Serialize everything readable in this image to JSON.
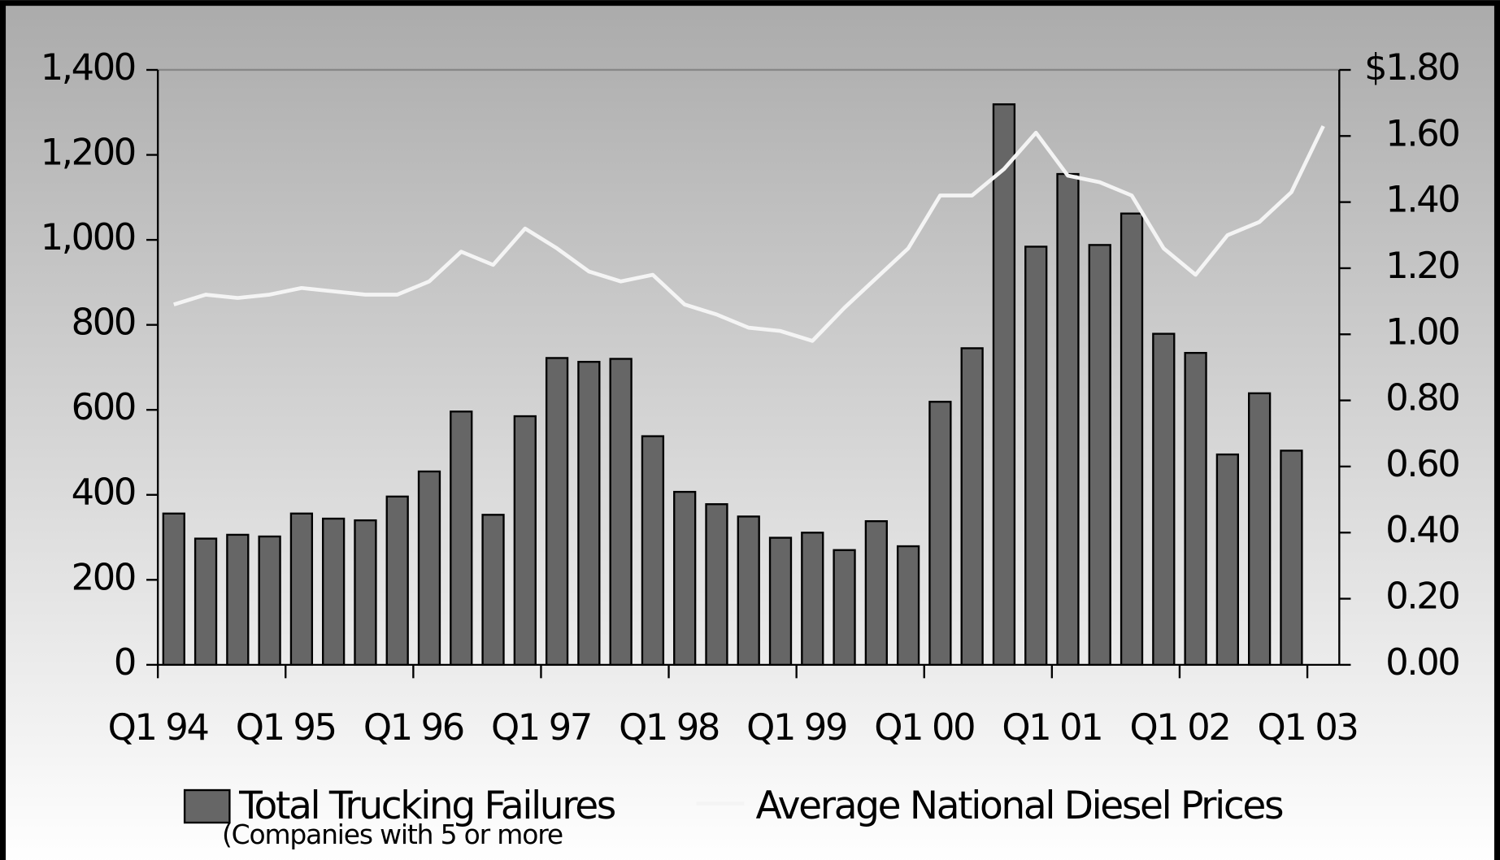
{
  "chart_data": {
    "type": "bar+line",
    "categories": [
      "Q1 94",
      null,
      null,
      null,
      "Q1 95",
      null,
      null,
      null,
      "Q1 96",
      null,
      null,
      null,
      "Q1 97",
      null,
      null,
      null,
      "Q1 98",
      null,
      null,
      null,
      "Q1 99",
      null,
      null,
      null,
      "Q1 00",
      null,
      null,
      null,
      "Q1 01",
      null,
      null,
      null,
      "Q1 02",
      null,
      null,
      null,
      "Q1 03"
    ],
    "series": [
      {
        "name": "Total Trucking Failures",
        "type": "bar",
        "color": "#666666",
        "values": [
          356,
          297,
          306,
          302,
          356,
          344,
          340,
          396,
          455,
          596,
          353,
          585,
          722,
          713,
          720,
          538,
          407,
          378,
          349,
          299,
          311,
          270,
          338,
          279,
          619,
          745,
          1319,
          984,
          1155,
          988,
          1062,
          779,
          734,
          495,
          639,
          504,
          null
        ]
      },
      {
        "name": "Average National Diesel Prices",
        "type": "line",
        "axis": "y2",
        "color": "#f4f4f4",
        "values": [
          1.09,
          1.12,
          1.11,
          1.12,
          1.14,
          1.13,
          1.12,
          1.12,
          1.16,
          1.25,
          1.21,
          1.32,
          1.26,
          1.19,
          1.16,
          1.18,
          1.09,
          1.06,
          1.02,
          1.01,
          0.98,
          1.08,
          1.17,
          1.26,
          1.42,
          1.42,
          1.5,
          1.61,
          1.48,
          1.46,
          1.42,
          1.26,
          1.18,
          1.3,
          1.34,
          1.43,
          1.63
        ]
      }
    ],
    "legend_note": "(Companies with 5 or more",
    "ylim": [
      0,
      1400
    ],
    "yticks": [
      0,
      200,
      400,
      600,
      800,
      {
        "value": 1000,
        "label": "1,000"
      },
      {
        "value": 1200,
        "label": "1,200"
      },
      {
        "value": 1400,
        "label": "1,400"
      }
    ],
    "y2lim": [
      0,
      1.8
    ],
    "y2ticks": [
      {
        "value": 0,
        "label": "0.00"
      },
      {
        "value": 0.2,
        "label": "0.20"
      },
      {
        "value": 0.4,
        "label": "0.40"
      },
      {
        "value": 0.6,
        "label": "0.60"
      },
      {
        "value": 0.8,
        "label": "0.80"
      },
      {
        "value": 1,
        "label": "1.00"
      },
      {
        "value": 1.2,
        "label": "1.20"
      },
      {
        "value": 1.4,
        "label": "1.40"
      },
      {
        "value": 1.6,
        "label": "1.60"
      },
      {
        "value": 1.8,
        "label": "$1.80"
      }
    ],
    "grid": false,
    "legend": "bottom"
  }
}
